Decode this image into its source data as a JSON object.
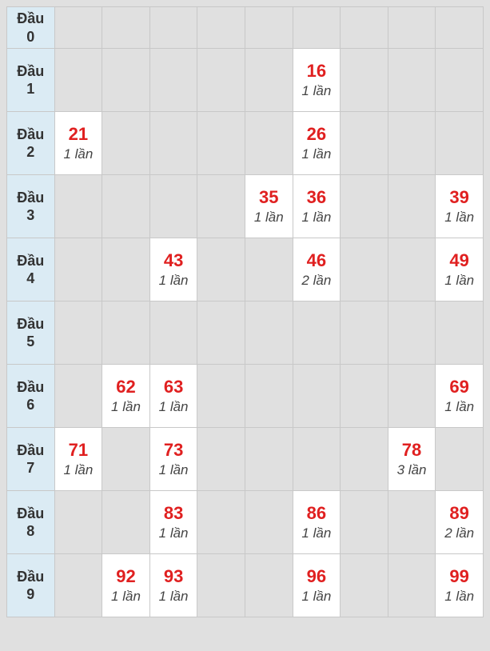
{
  "table": {
    "header_prefix": "Đầu",
    "count_suffix": "lần",
    "header_bg_color": "#dbebf4",
    "filled_bg_color": "#ffffff",
    "empty_bg_color": "#e0e0e0",
    "border_color": "#c8c8c8",
    "number_color": "#e02020",
    "count_color": "#444444",
    "header_text_color": "#333333",
    "number_fontsize": 22,
    "count_fontsize": 17,
    "header_fontsize": 18,
    "rows": 10,
    "cols": 10,
    "row_headers": [
      "0",
      "1",
      "2",
      "3",
      "4",
      "5",
      "6",
      "7",
      "8",
      "9"
    ],
    "cells": {
      "1": {
        "6": {
          "num": "16",
          "count": 1
        }
      },
      "2": {
        "1": {
          "num": "21",
          "count": 1
        },
        "6": {
          "num": "26",
          "count": 1
        }
      },
      "3": {
        "5": {
          "num": "35",
          "count": 1
        },
        "6": {
          "num": "36",
          "count": 1
        },
        "9": {
          "num": "39",
          "count": 1
        }
      },
      "4": {
        "3": {
          "num": "43",
          "count": 1
        },
        "6": {
          "num": "46",
          "count": 2
        },
        "9": {
          "num": "49",
          "count": 1
        }
      },
      "6": {
        "2": {
          "num": "62",
          "count": 1
        },
        "3": {
          "num": "63",
          "count": 1
        },
        "9": {
          "num": "69",
          "count": 1
        }
      },
      "7": {
        "1": {
          "num": "71",
          "count": 1
        },
        "3": {
          "num": "73",
          "count": 1
        },
        "8": {
          "num": "78",
          "count": 3
        }
      },
      "8": {
        "3": {
          "num": "83",
          "count": 1
        },
        "6": {
          "num": "86",
          "count": 1
        },
        "9": {
          "num": "89",
          "count": 2
        }
      },
      "9": {
        "2": {
          "num": "92",
          "count": 1
        },
        "3": {
          "num": "93",
          "count": 1
        },
        "6": {
          "num": "96",
          "count": 1
        },
        "9": {
          "num": "99",
          "count": 1
        }
      }
    }
  }
}
